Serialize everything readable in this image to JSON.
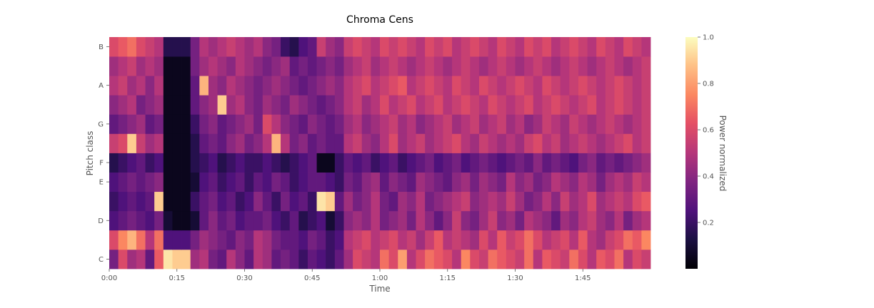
{
  "chart_data": {
    "type": "heatmap",
    "title": "Chroma Cens",
    "xlabel": "Time",
    "ylabel": "Pitch class",
    "colorbar_label": "Power normalized",
    "colormap": "magma",
    "xlim": [
      0,
      120
    ],
    "xtick_values": [
      0,
      15,
      30,
      45,
      60,
      75,
      90,
      105
    ],
    "xtick_labels": [
      "0:00",
      "0:15",
      "0:30",
      "0:45",
      "1:00",
      "1:15",
      "1:30",
      "1:45"
    ],
    "rows": [
      "C",
      "C#",
      "D",
      "D#",
      "E",
      "F",
      "F#",
      "G",
      "G#",
      "A",
      "A#",
      "B"
    ],
    "ytick_labels": [
      {
        "row": 0,
        "label": "C"
      },
      {
        "row": 2,
        "label": "D"
      },
      {
        "row": 4,
        "label": "E"
      },
      {
        "row": 5,
        "label": "F"
      },
      {
        "row": 7,
        "label": "G"
      },
      {
        "row": 9,
        "label": "A"
      },
      {
        "row": 11,
        "label": "B"
      }
    ],
    "clim": [
      0,
      1
    ],
    "colorbar_ticks": [
      {
        "value": 0.2,
        "label": "0.2"
      },
      {
        "value": 0.4,
        "label": "0.4"
      },
      {
        "value": 0.6,
        "label": "0.6"
      },
      {
        "value": 0.8,
        "label": "0.8"
      },
      {
        "value": 1.0,
        "label": "1.0"
      }
    ],
    "time_bins": [
      0,
      2,
      4,
      6,
      8,
      10,
      12,
      14,
      16,
      18,
      20,
      22,
      24,
      26,
      28,
      30,
      32,
      34,
      36,
      38,
      40,
      42,
      44,
      46,
      48,
      50,
      52,
      54,
      56,
      58,
      60,
      62,
      64,
      66,
      68,
      70,
      72,
      74,
      76,
      78,
      80,
      82,
      84,
      86,
      88,
      90,
      92,
      94,
      96,
      98,
      100,
      102,
      104,
      106,
      108,
      110,
      112,
      114,
      116,
      118
    ],
    "values": [
      [
        0.35,
        0.6,
        0.45,
        0.5,
        0.3,
        0.65,
        0.95,
        0.9,
        0.9,
        0.45,
        0.5,
        0.35,
        0.3,
        0.5,
        0.4,
        0.3,
        0.5,
        0.45,
        0.3,
        0.35,
        0.3,
        0.2,
        0.3,
        0.25,
        0.2,
        0.3,
        0.45,
        0.6,
        0.55,
        0.5,
        0.7,
        0.6,
        0.8,
        0.5,
        0.6,
        0.7,
        0.65,
        0.6,
        0.5,
        0.75,
        0.6,
        0.55,
        0.7,
        0.65,
        0.6,
        0.55,
        0.7,
        0.5,
        0.65,
        0.6,
        0.55,
        0.7,
        0.6,
        0.5,
        0.65,
        0.6,
        0.7,
        0.5,
        0.6,
        0.55
      ],
      [
        0.6,
        0.75,
        0.85,
        0.7,
        0.5,
        0.7,
        0.25,
        0.25,
        0.25,
        0.35,
        0.45,
        0.4,
        0.35,
        0.3,
        0.4,
        0.35,
        0.5,
        0.45,
        0.35,
        0.3,
        0.3,
        0.25,
        0.35,
        0.3,
        0.2,
        0.25,
        0.5,
        0.55,
        0.6,
        0.5,
        0.55,
        0.6,
        0.5,
        0.55,
        0.45,
        0.55,
        0.65,
        0.5,
        0.55,
        0.5,
        0.45,
        0.6,
        0.5,
        0.65,
        0.55,
        0.6,
        0.7,
        0.6,
        0.5,
        0.55,
        0.6,
        0.5,
        0.65,
        0.5,
        0.45,
        0.55,
        0.6,
        0.7,
        0.65,
        0.75
      ],
      [
        0.25,
        0.3,
        0.35,
        0.3,
        0.25,
        0.35,
        0.1,
        0.05,
        0.05,
        0.1,
        0.3,
        0.4,
        0.3,
        0.35,
        0.25,
        0.3,
        0.3,
        0.35,
        0.25,
        0.2,
        0.3,
        0.15,
        0.2,
        0.25,
        0.1,
        0.2,
        0.4,
        0.45,
        0.4,
        0.5,
        0.35,
        0.4,
        0.45,
        0.35,
        0.5,
        0.4,
        0.3,
        0.4,
        0.55,
        0.4,
        0.35,
        0.45,
        0.55,
        0.4,
        0.45,
        0.35,
        0.5,
        0.45,
        0.4,
        0.3,
        0.45,
        0.4,
        0.5,
        0.55,
        0.45,
        0.4,
        0.5,
        0.35,
        0.45,
        0.5
      ],
      [
        0.2,
        0.25,
        0.3,
        0.25,
        0.3,
        0.9,
        0.05,
        0.05,
        0.05,
        0.2,
        0.3,
        0.35,
        0.25,
        0.3,
        0.2,
        0.25,
        0.4,
        0.3,
        0.2,
        0.35,
        0.25,
        0.3,
        0.2,
        0.95,
        0.9,
        0.3,
        0.45,
        0.35,
        0.4,
        0.5,
        0.35,
        0.3,
        0.45,
        0.4,
        0.5,
        0.35,
        0.4,
        0.45,
        0.5,
        0.55,
        0.4,
        0.45,
        0.5,
        0.45,
        0.55,
        0.45,
        0.35,
        0.4,
        0.5,
        0.4,
        0.55,
        0.45,
        0.5,
        0.6,
        0.45,
        0.5,
        0.55,
        0.5,
        0.6,
        0.65
      ],
      [
        0.25,
        0.3,
        0.35,
        0.3,
        0.35,
        0.4,
        0.05,
        0.05,
        0.05,
        0.1,
        0.25,
        0.3,
        0.2,
        0.25,
        0.3,
        0.2,
        0.3,
        0.25,
        0.35,
        0.3,
        0.2,
        0.25,
        0.3,
        0.3,
        0.25,
        0.2,
        0.35,
        0.3,
        0.4,
        0.45,
        0.3,
        0.4,
        0.35,
        0.3,
        0.45,
        0.4,
        0.35,
        0.3,
        0.4,
        0.45,
        0.35,
        0.45,
        0.4,
        0.35,
        0.5,
        0.4,
        0.45,
        0.35,
        0.4,
        0.5,
        0.45,
        0.4,
        0.5,
        0.45,
        0.35,
        0.45,
        0.5,
        0.45,
        0.55,
        0.5
      ],
      [
        0.15,
        0.2,
        0.25,
        0.3,
        0.2,
        0.25,
        0.05,
        0.05,
        0.05,
        0.15,
        0.2,
        0.25,
        0.15,
        0.2,
        0.25,
        0.2,
        0.2,
        0.25,
        0.2,
        0.15,
        0.2,
        0.25,
        0.3,
        0.05,
        0.05,
        0.2,
        0.3,
        0.25,
        0.3,
        0.2,
        0.25,
        0.3,
        0.2,
        0.25,
        0.3,
        0.35,
        0.25,
        0.3,
        0.35,
        0.25,
        0.3,
        0.35,
        0.3,
        0.25,
        0.3,
        0.35,
        0.3,
        0.4,
        0.3,
        0.35,
        0.3,
        0.25,
        0.35,
        0.4,
        0.3,
        0.35,
        0.3,
        0.35,
        0.4,
        0.45
      ],
      [
        0.55,
        0.6,
        0.9,
        0.55,
        0.45,
        0.5,
        0.05,
        0.05,
        0.05,
        0.15,
        0.3,
        0.35,
        0.3,
        0.4,
        0.45,
        0.35,
        0.4,
        0.5,
        0.85,
        0.5,
        0.35,
        0.4,
        0.3,
        0.35,
        0.3,
        0.3,
        0.5,
        0.55,
        0.45,
        0.4,
        0.5,
        0.6,
        0.45,
        0.5,
        0.55,
        0.45,
        0.5,
        0.55,
        0.6,
        0.5,
        0.45,
        0.55,
        0.5,
        0.45,
        0.5,
        0.45,
        0.55,
        0.6,
        0.5,
        0.55,
        0.45,
        0.5,
        0.55,
        0.5,
        0.45,
        0.5,
        0.55,
        0.6,
        0.5,
        0.55
      ],
      [
        0.3,
        0.35,
        0.4,
        0.45,
        0.3,
        0.35,
        0.05,
        0.05,
        0.05,
        0.2,
        0.35,
        0.4,
        0.3,
        0.35,
        0.4,
        0.45,
        0.35,
        0.6,
        0.5,
        0.4,
        0.35,
        0.3,
        0.4,
        0.35,
        0.3,
        0.35,
        0.45,
        0.5,
        0.4,
        0.45,
        0.5,
        0.55,
        0.45,
        0.5,
        0.4,
        0.45,
        0.5,
        0.55,
        0.45,
        0.5,
        0.55,
        0.45,
        0.5,
        0.55,
        0.45,
        0.5,
        0.4,
        0.45,
        0.55,
        0.5,
        0.45,
        0.55,
        0.5,
        0.45,
        0.5,
        0.55,
        0.5,
        0.45,
        0.5,
        0.55
      ],
      [
        0.4,
        0.45,
        0.5,
        0.35,
        0.4,
        0.45,
        0.05,
        0.05,
        0.05,
        0.3,
        0.4,
        0.45,
        0.9,
        0.45,
        0.5,
        0.4,
        0.35,
        0.45,
        0.4,
        0.35,
        0.45,
        0.4,
        0.35,
        0.3,
        0.35,
        0.4,
        0.5,
        0.55,
        0.45,
        0.5,
        0.6,
        0.5,
        0.55,
        0.6,
        0.5,
        0.55,
        0.6,
        0.5,
        0.55,
        0.6,
        0.55,
        0.5,
        0.6,
        0.55,
        0.5,
        0.55,
        0.6,
        0.5,
        0.55,
        0.6,
        0.55,
        0.5,
        0.55,
        0.6,
        0.5,
        0.55,
        0.6,
        0.55,
        0.5,
        0.55
      ],
      [
        0.5,
        0.55,
        0.45,
        0.5,
        0.4,
        0.5,
        0.05,
        0.05,
        0.05,
        0.3,
        0.85,
        0.45,
        0.4,
        0.5,
        0.45,
        0.4,
        0.35,
        0.4,
        0.45,
        0.4,
        0.35,
        0.3,
        0.35,
        0.4,
        0.45,
        0.4,
        0.5,
        0.55,
        0.6,
        0.5,
        0.55,
        0.6,
        0.65,
        0.5,
        0.55,
        0.6,
        0.55,
        0.5,
        0.6,
        0.55,
        0.5,
        0.6,
        0.55,
        0.5,
        0.55,
        0.6,
        0.55,
        0.5,
        0.6,
        0.55,
        0.5,
        0.55,
        0.6,
        0.55,
        0.5,
        0.55,
        0.6,
        0.55,
        0.5,
        0.55
      ],
      [
        0.45,
        0.5,
        0.55,
        0.45,
        0.5,
        0.45,
        0.05,
        0.05,
        0.05,
        0.35,
        0.45,
        0.5,
        0.45,
        0.4,
        0.5,
        0.45,
        0.4,
        0.35,
        0.4,
        0.45,
        0.3,
        0.35,
        0.3,
        0.35,
        0.4,
        0.35,
        0.45,
        0.5,
        0.55,
        0.45,
        0.5,
        0.55,
        0.5,
        0.45,
        0.5,
        0.55,
        0.5,
        0.45,
        0.5,
        0.55,
        0.5,
        0.45,
        0.5,
        0.55,
        0.5,
        0.45,
        0.5,
        0.55,
        0.5,
        0.45,
        0.5,
        0.55,
        0.5,
        0.45,
        0.5,
        0.55,
        0.5,
        0.45,
        0.5,
        0.55
      ],
      [
        0.6,
        0.65,
        0.7,
        0.6,
        0.55,
        0.5,
        0.15,
        0.15,
        0.15,
        0.35,
        0.5,
        0.45,
        0.5,
        0.55,
        0.5,
        0.45,
        0.5,
        0.4,
        0.35,
        0.2,
        0.15,
        0.25,
        0.3,
        0.55,
        0.45,
        0.4,
        0.55,
        0.6,
        0.55,
        0.5,
        0.6,
        0.55,
        0.6,
        0.55,
        0.5,
        0.6,
        0.55,
        0.6,
        0.5,
        0.55,
        0.6,
        0.55,
        0.5,
        0.6,
        0.55,
        0.5,
        0.6,
        0.55,
        0.6,
        0.5,
        0.55,
        0.6,
        0.55,
        0.5,
        0.6,
        0.55,
        0.5,
        0.6,
        0.55,
        0.5
      ]
    ]
  }
}
